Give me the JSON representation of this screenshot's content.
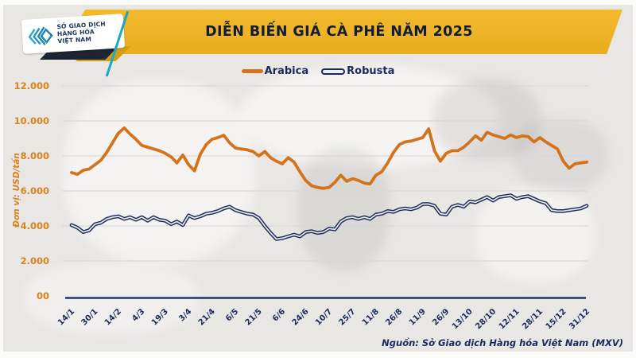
{
  "header": {
    "title": "DIỄN BIẾN GIÁ CÀ PHÊ NĂM 2025",
    "logo_lines": [
      "SỞ GIAO DỊCH",
      "HÀNG HÓA",
      "VIỆT NAM"
    ],
    "logo_tm": "™"
  },
  "chart_data": {
    "type": "line",
    "title": "DIỄN BIẾN GIÁ CÀ PHÊ NĂM 2025",
    "unit_label": "Đơn vị: USD/tấn",
    "ylim": [
      0,
      12000
    ],
    "grid": true,
    "legend_position": "top",
    "y_ticks": [
      {
        "value": 12000,
        "label": "12.000"
      },
      {
        "value": 10000,
        "label": "10.000"
      },
      {
        "value": 8000,
        "label": "8.000"
      },
      {
        "value": 6000,
        "label": "6.000"
      },
      {
        "value": 4000,
        "label": "4.000"
      },
      {
        "value": 2000,
        "label": "2.000"
      },
      {
        "value": 0,
        "label": "00"
      }
    ],
    "x_tick_labels": [
      "14/1",
      "30/1",
      "14/2",
      "4/3",
      "19/3",
      "3/4",
      "21/4",
      "6/5",
      "21/5",
      "6/6",
      "24/6",
      "10/7",
      "25/7",
      "11/8",
      "26/8",
      "11/9",
      "26/9",
      "13/10",
      "28/10",
      "12/11",
      "28/11",
      "15/12",
      "31/12"
    ],
    "points_per_interval": 4,
    "series": [
      {
        "name": "Arabica",
        "color": "#d4731b",
        "style": "solid",
        "values": [
          7050,
          6950,
          7180,
          7250,
          7500,
          7750,
          8200,
          8750,
          9300,
          9600,
          9250,
          8950,
          8600,
          8500,
          8400,
          8300,
          8150,
          7950,
          7600,
          8050,
          7500,
          7150,
          8100,
          8650,
          8950,
          9050,
          9180,
          8750,
          8450,
          8400,
          8350,
          8250,
          8000,
          8250,
          7900,
          7700,
          7550,
          7900,
          7650,
          7100,
          6600,
          6300,
          6200,
          6150,
          6200,
          6500,
          6900,
          6550,
          6700,
          6600,
          6450,
          6400,
          6900,
          7100,
          7600,
          8200,
          8650,
          8800,
          8850,
          8950,
          9050,
          9550,
          8300,
          7700,
          8150,
          8300,
          8300,
          8500,
          8800,
          9150,
          8900,
          9350,
          9200,
          9100,
          9000,
          9200,
          9050,
          9150,
          9100,
          8800,
          9050,
          8800,
          8600,
          8400,
          7700,
          7300,
          7550,
          7600,
          7650
        ]
      },
      {
        "name": "Robusta",
        "color": "#1b2a5c",
        "style": "double-outline",
        "values": [
          4050,
          3900,
          3650,
          3750,
          4100,
          4180,
          4400,
          4500,
          4550,
          4400,
          4500,
          4350,
          4500,
          4300,
          4500,
          4350,
          4300,
          4100,
          4250,
          4050,
          4600,
          4450,
          4550,
          4700,
          4750,
          4850,
          5000,
          5100,
          4900,
          4800,
          4700,
          4650,
          4450,
          4000,
          3600,
          3250,
          3300,
          3400,
          3500,
          3400,
          3650,
          3700,
          3600,
          3650,
          3850,
          3800,
          4250,
          4450,
          4500,
          4400,
          4500,
          4400,
          4650,
          4700,
          4850,
          4800,
          4950,
          5000,
          4950,
          5050,
          5250,
          5250,
          5150,
          4700,
          4650,
          5100,
          5200,
          5100,
          5400,
          5350,
          5500,
          5650,
          5450,
          5650,
          5700,
          5750,
          5550,
          5650,
          5700,
          5550,
          5400,
          5300,
          4900,
          4850,
          4850,
          4900,
          4950,
          5000,
          5150
        ]
      }
    ]
  },
  "footer": {
    "source": "Nguồn: Sở Giao dịch Hàng hóa Việt Nam (MXV)"
  },
  "colors": {
    "banner_yellow": "#efb324",
    "banner_shadow_gold": "#d89c15",
    "banner_shadow_dark": "#1d2433",
    "logo_teal": "#2aa7c9",
    "arabica_orange": "#d4731b",
    "robusta_navy": "#1b2a5c",
    "y_label_orange": "#d9821f",
    "axis_navy": "#23345f",
    "panel_gray": "#e9e7e4"
  }
}
